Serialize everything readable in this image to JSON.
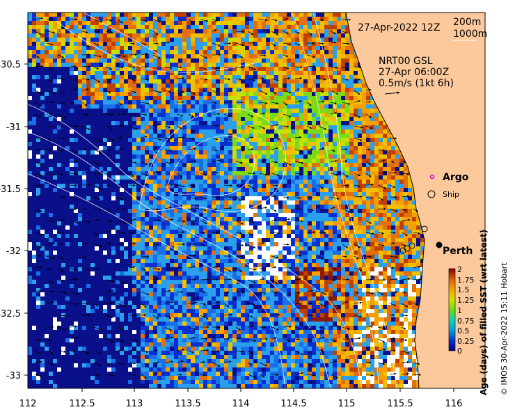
{
  "map": {
    "date_label": "27-Apr-2022 12Z",
    "contour_legend": [
      "200m",
      "1000m"
    ],
    "current_info": [
      "NRT00 GSL",
      "27-Apr 06:00Z",
      "0.5m/s (1kt 6h)"
    ],
    "place_labels": {
      "argo": "Argo",
      "ship": "Ship",
      "city": "Perth"
    },
    "x_ticks": [
      "112",
      "112.5",
      "113",
      "113.5",
      "114",
      "114.5",
      "115",
      "115.5",
      "116"
    ],
    "y_ticks": [
      "-30.5",
      "-31",
      "-31.5",
      "-32",
      "-32.5",
      "-33"
    ],
    "lon_range": [
      112,
      116.3
    ],
    "lat_range": [
      -33.15,
      -30.05
    ]
  },
  "colorbar": {
    "label": "Age (days) of filled SST (wrt latest)",
    "ticks": [
      "2",
      "1.75",
      "1.5",
      "1.25",
      "1",
      "0.75",
      "0.5",
      "0.25",
      "0"
    ],
    "range": [
      0,
      2
    ]
  },
  "credit": "© IMOS 30-Apr-2022 15:11 Hobart",
  "colors": {
    "land": "#fbc99b",
    "navy": "#0a0f8a",
    "argo_marker": "#e000e0",
    "contour": "#ffffff"
  }
}
